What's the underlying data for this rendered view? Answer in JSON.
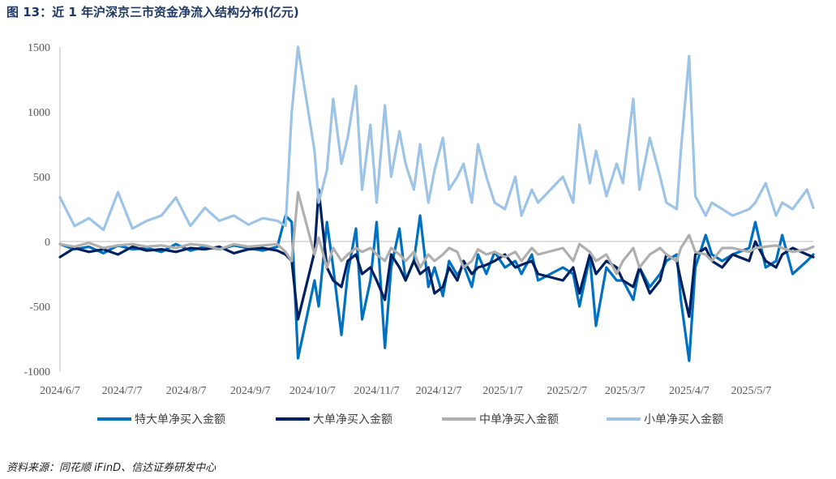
{
  "figure": {
    "title": "图 13：近 1 年沪深京三市资金净流入结构分布(亿元)",
    "source": "资料来源：同花顺 iFinD、信达证券研发中心"
  },
  "chart_data": {
    "type": "line",
    "title": "",
    "xlabel": "",
    "ylabel": "",
    "ylim": [
      -1000,
      1500
    ],
    "yticks": [
      "1500",
      "1000",
      "500",
      "0",
      "-500",
      "-1000"
    ],
    "ytick_values": [
      1500,
      1000,
      500,
      0,
      -500,
      -1000
    ],
    "x_tick_labels": [
      "2024/6/7",
      "2024/7/7",
      "2024/8/7",
      "2024/9/7",
      "2024/10/7",
      "2024/11/7",
      "2024/12/7",
      "2025/1/7",
      "2025/2/7",
      "2025/3/7",
      "2025/4/7",
      "2025/5/7"
    ],
    "x_range": [
      "2024/6/7",
      "2025/6/6"
    ],
    "grid": false,
    "legend_position": "bottom",
    "series": [
      {
        "name": "特大单净买入金额",
        "color": "#0070c0",
        "x": [
          "2024/6/7",
          "2024/6/14",
          "2024/6/21",
          "2024/6/28",
          "2024/7/5",
          "2024/7/12",
          "2024/7/19",
          "2024/7/26",
          "2024/8/2",
          "2024/8/9",
          "2024/8/16",
          "2024/8/23",
          "2024/8/30",
          "2024/9/6",
          "2024/9/13",
          "2024/9/20",
          "2024/9/24",
          "2024/9/27",
          "2024/9/30",
          "2024/10/8",
          "2024/10/10",
          "2024/10/14",
          "2024/10/17",
          "2024/10/21",
          "2024/10/24",
          "2024/10/28",
          "2024/10/31",
          "2024/11/4",
          "2024/11/7",
          "2024/11/11",
          "2024/11/14",
          "2024/11/18",
          "2024/11/21",
          "2024/11/25",
          "2024/11/28",
          "2024/12/2",
          "2024/12/5",
          "2024/12/9",
          "2024/12/12",
          "2024/12/16",
          "2024/12/19",
          "2024/12/23",
          "2024/12/26",
          "2024/12/30",
          "2025/1/3",
          "2025/1/8",
          "2025/1/13",
          "2025/1/16",
          "2025/1/21",
          "2025/1/24",
          "2025/2/5",
          "2025/2/10",
          "2025/2/13",
          "2025/2/18",
          "2025/2/21",
          "2025/2/26",
          "2025/3/3",
          "2025/3/6",
          "2025/3/11",
          "2025/3/14",
          "2025/3/19",
          "2025/3/24",
          "2025/3/27",
          "2025/4/1",
          "2025/4/3",
          "2025/4/7",
          "2025/4/10",
          "2025/4/15",
          "2025/4/18",
          "2025/4/23",
          "2025/4/28",
          "2025/5/6",
          "2025/5/9",
          "2025/5/14",
          "2025/5/19",
          "2025/5/22",
          "2025/5/27",
          "2025/6/3",
          "2025/6/6"
        ],
        "values": [
          -20,
          -60,
          -40,
          -90,
          -30,
          -60,
          -50,
          -80,
          -20,
          -70,
          -40,
          -60,
          -30,
          -50,
          -70,
          -40,
          200,
          150,
          -900,
          -300,
          -500,
          150,
          -200,
          -720,
          -250,
          100,
          -600,
          -300,
          150,
          -820,
          -200,
          100,
          -300,
          -150,
          200,
          -350,
          -200,
          -420,
          -150,
          -260,
          -180,
          -350,
          -100,
          -250,
          -80,
          -200,
          -150,
          -250,
          -100,
          -300,
          -200,
          -250,
          -500,
          -120,
          -650,
          -200,
          -300,
          -300,
          -450,
          -200,
          -350,
          -250,
          -150,
          -100,
          -450,
          -920,
          -200,
          50,
          -100,
          -150,
          -100,
          -50,
          150,
          -200,
          -150,
          50,
          -250,
          -150,
          -100
        ]
      },
      {
        "name": "大单净买入金额",
        "color": "#002060",
        "x": [
          "2024/6/7",
          "2024/6/14",
          "2024/6/21",
          "2024/6/28",
          "2024/7/5",
          "2024/7/12",
          "2024/7/19",
          "2024/7/26",
          "2024/8/2",
          "2024/8/9",
          "2024/8/16",
          "2024/8/23",
          "2024/8/30",
          "2024/9/6",
          "2024/9/13",
          "2024/9/20",
          "2024/9/24",
          "2024/9/27",
          "2024/9/30",
          "2024/10/8",
          "2024/10/10",
          "2024/10/14",
          "2024/10/17",
          "2024/10/21",
          "2024/10/24",
          "2024/10/28",
          "2024/10/31",
          "2024/11/4",
          "2024/11/7",
          "2024/11/11",
          "2024/11/14",
          "2024/11/18",
          "2024/11/21",
          "2024/11/25",
          "2024/11/28",
          "2024/12/2",
          "2024/12/5",
          "2024/12/9",
          "2024/12/12",
          "2024/12/16",
          "2024/12/19",
          "2024/12/23",
          "2024/12/26",
          "2024/12/30",
          "2025/1/3",
          "2025/1/8",
          "2025/1/13",
          "2025/1/16",
          "2025/1/21",
          "2025/1/24",
          "2025/2/5",
          "2025/2/10",
          "2025/2/13",
          "2025/2/18",
          "2025/2/21",
          "2025/2/26",
          "2025/3/3",
          "2025/3/6",
          "2025/3/11",
          "2025/3/14",
          "2025/3/19",
          "2025/3/24",
          "2025/3/27",
          "2025/4/1",
          "2025/4/3",
          "2025/4/7",
          "2025/4/10",
          "2025/4/15",
          "2025/4/18",
          "2025/4/23",
          "2025/4/28",
          "2025/5/6",
          "2025/5/9",
          "2025/5/14",
          "2025/5/19",
          "2025/5/22",
          "2025/5/27",
          "2025/6/3",
          "2025/6/6"
        ],
        "values": [
          -120,
          -50,
          -80,
          -60,
          -100,
          -40,
          -70,
          -60,
          -80,
          -50,
          -60,
          -40,
          -90,
          -60,
          -50,
          -70,
          -100,
          -150,
          -600,
          -80,
          400,
          -200,
          -300,
          -350,
          -150,
          -100,
          -250,
          -200,
          -300,
          -450,
          -100,
          -200,
          -300,
          -150,
          -250,
          -200,
          -400,
          -350,
          -200,
          -300,
          -150,
          -250,
          -200,
          -180,
          -150,
          -100,
          -200,
          -180,
          -150,
          -250,
          -300,
          -200,
          -400,
          -100,
          -250,
          -150,
          -200,
          -300,
          -350,
          -200,
          -400,
          -300,
          -100,
          -150,
          -300,
          -580,
          -100,
          -50,
          -150,
          -200,
          -100,
          -150,
          0,
          -150,
          -200,
          -100,
          -50,
          -100,
          -120
        ]
      },
      {
        "name": "中单净买入金额",
        "color": "#afafaf",
        "x": [
          "2024/6/7",
          "2024/6/14",
          "2024/6/21",
          "2024/6/28",
          "2024/7/5",
          "2024/7/12",
          "2024/7/19",
          "2024/7/26",
          "2024/8/2",
          "2024/8/9",
          "2024/8/16",
          "2024/8/23",
          "2024/8/30",
          "2024/9/6",
          "2024/9/13",
          "2024/9/20",
          "2024/9/24",
          "2024/9/27",
          "2024/9/30",
          "2024/10/8",
          "2024/10/10",
          "2024/10/14",
          "2024/10/17",
          "2024/10/21",
          "2024/10/24",
          "2024/10/28",
          "2024/10/31",
          "2024/11/4",
          "2024/11/7",
          "2024/11/11",
          "2024/11/14",
          "2024/11/18",
          "2024/11/21",
          "2024/11/25",
          "2024/11/28",
          "2024/12/2",
          "2024/12/5",
          "2024/12/9",
          "2024/12/12",
          "2024/12/16",
          "2024/12/19",
          "2024/12/23",
          "2024/12/26",
          "2024/12/30",
          "2025/1/3",
          "2025/1/8",
          "2025/1/13",
          "2025/1/16",
          "2025/1/21",
          "2025/1/24",
          "2025/2/5",
          "2025/2/10",
          "2025/2/13",
          "2025/2/18",
          "2025/2/21",
          "2025/2/26",
          "2025/3/3",
          "2025/3/6",
          "2025/3/11",
          "2025/3/14",
          "2025/3/19",
          "2025/3/24",
          "2025/3/27",
          "2025/4/1",
          "2025/4/3",
          "2025/4/7",
          "2025/4/10",
          "2025/4/15",
          "2025/4/18",
          "2025/4/23",
          "2025/4/28",
          "2025/5/6",
          "2025/5/9",
          "2025/5/14",
          "2025/5/19",
          "2025/5/22",
          "2025/5/27",
          "2025/6/3",
          "2025/6/6"
        ],
        "values": [
          -20,
          -40,
          -10,
          -50,
          -30,
          -20,
          -40,
          -30,
          -50,
          -20,
          -30,
          -60,
          -20,
          -40,
          -30,
          -20,
          -80,
          -150,
          380,
          -100,
          30,
          -200,
          -50,
          -150,
          -100,
          -50,
          -80,
          -50,
          -100,
          -150,
          -50,
          -100,
          -150,
          -80,
          -200,
          -100,
          -150,
          -100,
          -50,
          -80,
          -200,
          -150,
          -60,
          -100,
          -80,
          -120,
          -80,
          -150,
          -50,
          -100,
          -50,
          -150,
          -20,
          -80,
          -150,
          -100,
          -250,
          -150,
          -50,
          -200,
          -100,
          -50,
          -100,
          -150,
          -50,
          50,
          -80,
          -100,
          -150,
          -50,
          -50,
          -80,
          -50,
          -40,
          -30,
          -50,
          -80,
          -60,
          -40
        ]
      },
      {
        "name": "小单净买入金额",
        "color": "#9dc3e6",
        "x": [
          "2024/6/7",
          "2024/6/14",
          "2024/6/21",
          "2024/6/28",
          "2024/7/5",
          "2024/7/12",
          "2024/7/19",
          "2024/7/26",
          "2024/8/2",
          "2024/8/9",
          "2024/8/16",
          "2024/8/23",
          "2024/8/30",
          "2024/9/6",
          "2024/9/13",
          "2024/9/20",
          "2024/9/24",
          "2024/9/27",
          "2024/9/30",
          "2024/10/8",
          "2024/10/10",
          "2024/10/14",
          "2024/10/17",
          "2024/10/21",
          "2024/10/24",
          "2024/10/28",
          "2024/10/31",
          "2024/11/4",
          "2024/11/7",
          "2024/11/11",
          "2024/11/14",
          "2024/11/18",
          "2024/11/21",
          "2024/11/25",
          "2024/11/28",
          "2024/12/2",
          "2024/12/5",
          "2024/12/9",
          "2024/12/12",
          "2024/12/16",
          "2024/12/19",
          "2024/12/23",
          "2024/12/26",
          "2024/12/30",
          "2025/1/3",
          "2025/1/8",
          "2025/1/13",
          "2025/1/16",
          "2025/1/21",
          "2025/1/24",
          "2025/2/5",
          "2025/2/10",
          "2025/2/13",
          "2025/2/18",
          "2025/2/21",
          "2025/2/26",
          "2025/3/3",
          "2025/3/6",
          "2025/3/11",
          "2025/3/14",
          "2025/3/19",
          "2025/3/24",
          "2025/3/27",
          "2025/4/1",
          "2025/4/3",
          "2025/4/7",
          "2025/4/10",
          "2025/4/15",
          "2025/4/18",
          "2025/4/23",
          "2025/4/28",
          "2025/5/6",
          "2025/5/9",
          "2025/5/14",
          "2025/5/19",
          "2025/5/22",
          "2025/5/27",
          "2025/6/3",
          "2025/6/6"
        ],
        "values": [
          340,
          120,
          180,
          90,
          380,
          100,
          160,
          200,
          340,
          120,
          260,
          160,
          200,
          130,
          180,
          160,
          120,
          1000,
          1500,
          700,
          300,
          550,
          1100,
          600,
          800,
          1200,
          400,
          900,
          300,
          1050,
          500,
          850,
          600,
          400,
          750,
          300,
          550,
          800,
          400,
          500,
          600,
          300,
          750,
          500,
          300,
          250,
          500,
          200,
          400,
          300,
          500,
          300,
          900,
          450,
          700,
          350,
          600,
          450,
          1100,
          400,
          800,
          500,
          300,
          250,
          700,
          1430,
          350,
          200,
          300,
          250,
          200,
          250,
          300,
          450,
          200,
          300,
          250,
          400,
          260
        ]
      }
    ]
  }
}
